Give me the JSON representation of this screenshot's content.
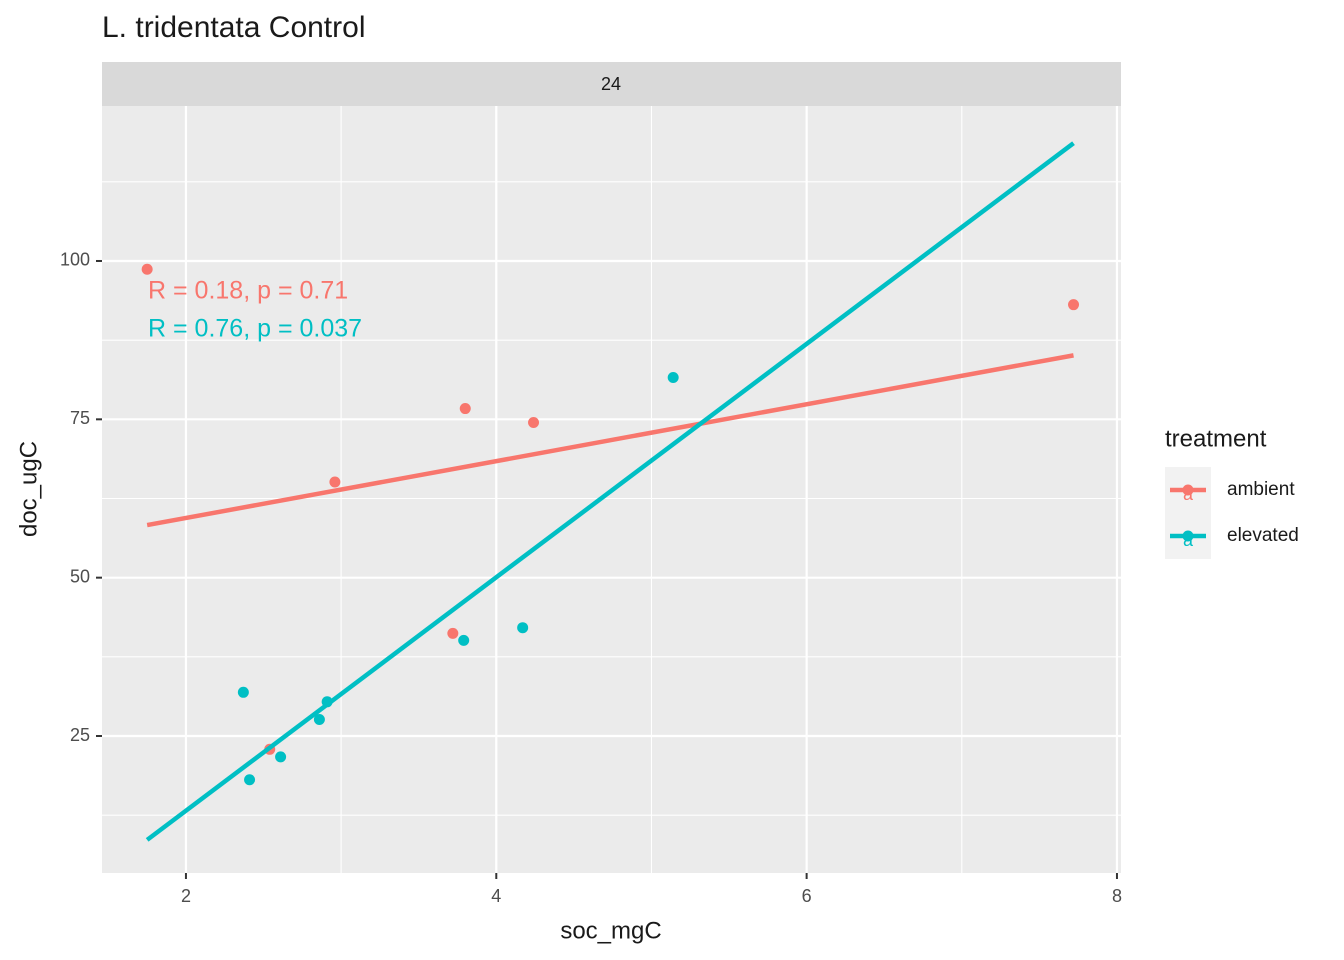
{
  "chart_data": {
    "type": "scatter",
    "title": "L. tridentata Control",
    "facet_label": "24",
    "x_label": "soc_mgC",
    "y_label": "doc_ugC",
    "xlim": [
      1.459,
      8.026
    ],
    "ylim": [
      3.37,
      124.47
    ],
    "xticks": [
      2,
      4,
      6,
      8
    ],
    "yticks": [
      25,
      50,
      75,
      100
    ],
    "x_minor_grid": [
      3,
      5,
      7
    ],
    "y_minor_grid": [
      12.5,
      37.5,
      62.5,
      87.5,
      112.5
    ],
    "grid": true,
    "legend_title": "treatment",
    "legend_position": "right",
    "legend_key_text": "a",
    "series": [
      {
        "name": "ambient",
        "color": "#F8766D",
        "x": [
          1.75,
          2.96,
          3.8,
          4.24,
          7.72,
          3.72,
          2.54
        ],
        "values": [
          98.7,
          65.1,
          76.7,
          74.5,
          93.1,
          41.2,
          22.9
        ],
        "fit_x": [
          1.75,
          7.72
        ],
        "fit_values": [
          58.3,
          85.1
        ]
      },
      {
        "name": "elevated",
        "color": "#00BFC4",
        "x": [
          5.14,
          4.17,
          3.79,
          2.37,
          2.91,
          2.86,
          2.61,
          2.41
        ],
        "values": [
          81.6,
          42.1,
          40.1,
          31.9,
          30.4,
          27.6,
          21.7,
          18.1
        ],
        "fit_x": [
          1.75,
          7.72
        ],
        "fit_values": [
          8.6,
          118.6
        ]
      }
    ],
    "annotations": [
      {
        "text": "R = 0.18, p = 0.71",
        "color": "#F8766D"
      },
      {
        "text": "R = 0.76, p = 0.037",
        "color": "#00BFC4"
      }
    ]
  }
}
